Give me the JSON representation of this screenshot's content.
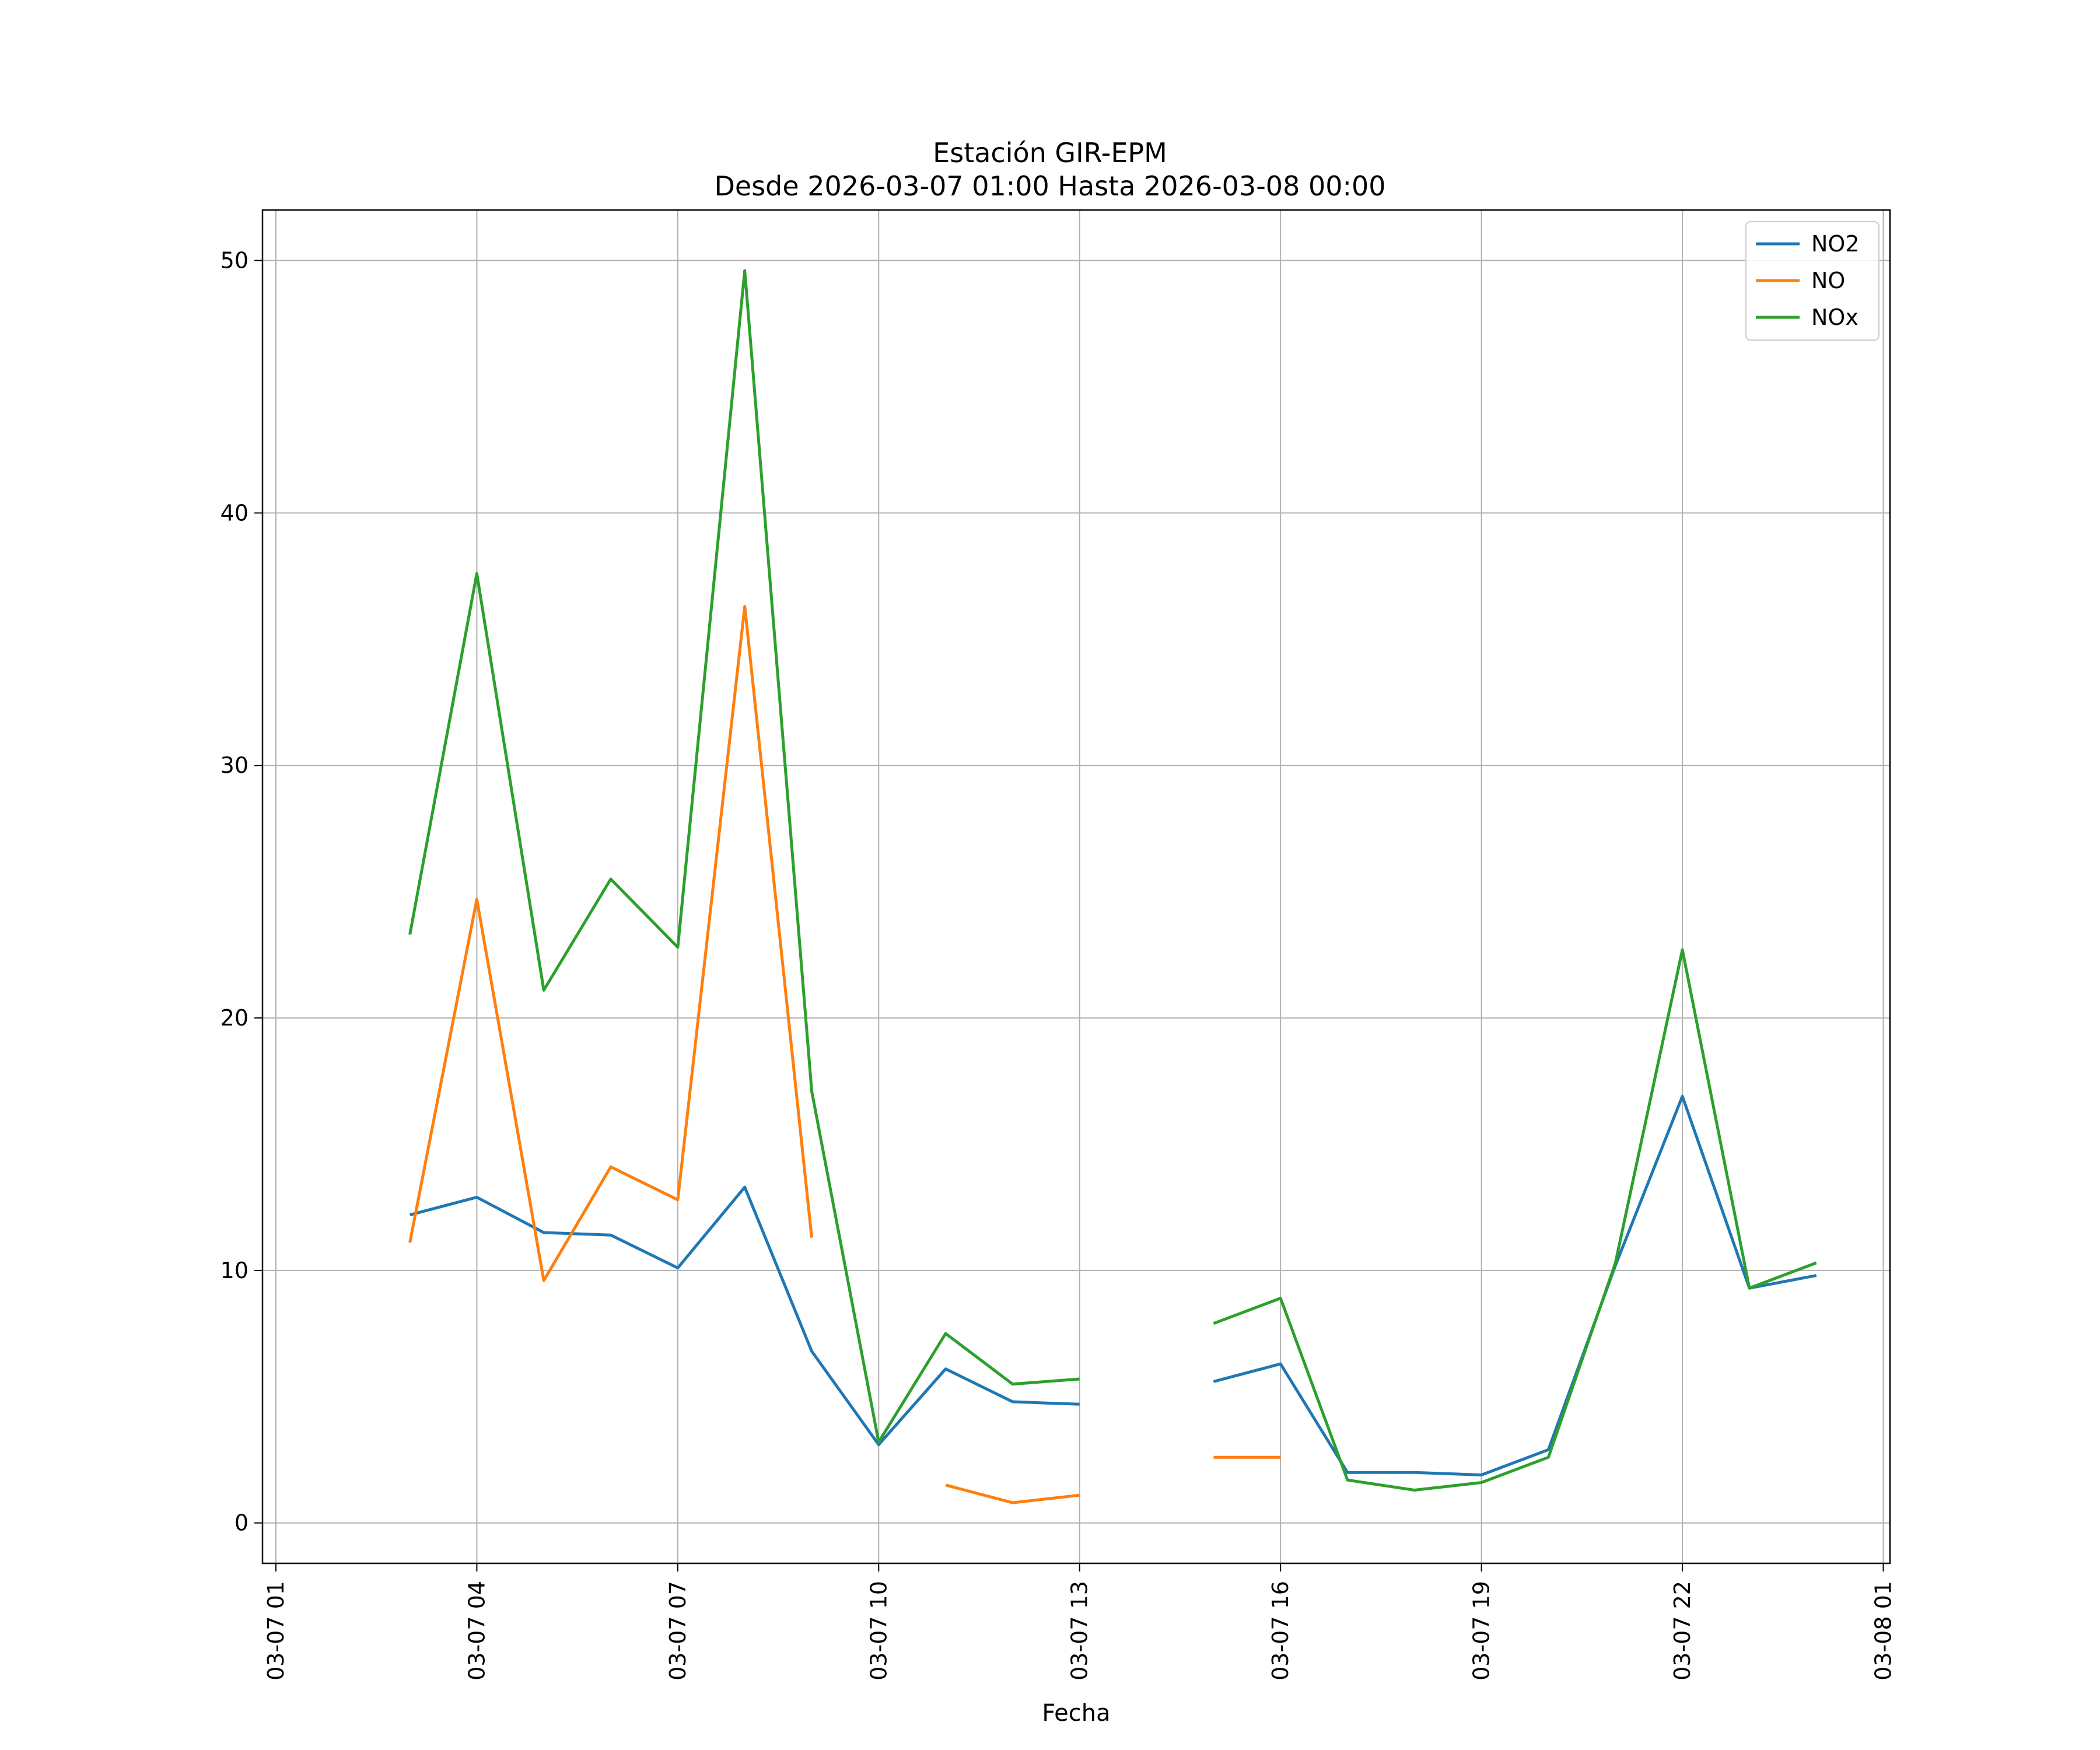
{
  "chart_data": {
    "type": "line",
    "title": "Estación GIR-EPM",
    "subtitle": "Desde 2026-03-07 01:00 Hasta 2026-03-08 00:00",
    "xlabel": "Fecha",
    "ylabel": "",
    "x_hours": [
      3,
      4,
      5,
      6,
      7,
      8,
      9,
      10,
      11,
      12,
      13,
      14,
      15,
      16,
      17,
      18,
      19,
      20,
      21,
      22,
      23,
      24
    ],
    "xlim": [
      0.8,
      25.1
    ],
    "ylim": [
      -1.6,
      52.0
    ],
    "x_tick_labels": [
      "03-07 01",
      "03-07 04",
      "03-07 07",
      "03-07 10",
      "03-07 13",
      "03-07 16",
      "03-07 19",
      "03-07 22",
      "03-08 01"
    ],
    "y_ticks": [
      0,
      10,
      20,
      30,
      40,
      50
    ],
    "grid": true,
    "legend_position": "top-right",
    "series": [
      {
        "name": "NO2",
        "color": "#1f77b4",
        "values": [
          12.2,
          12.9,
          11.5,
          11.4,
          10.1,
          13.3,
          6.8,
          3.1,
          6.1,
          4.8,
          4.7,
          null,
          5.6,
          6.3,
          2.0,
          2.0,
          1.9,
          2.9,
          10.2,
          16.9,
          9.3,
          9.8
        ]
      },
      {
        "name": "NO",
        "color": "#ff7f0e",
        "values": [
          11.1,
          24.7,
          9.6,
          14.1,
          12.8,
          36.3,
          11.3,
          null,
          1.5,
          0.8,
          1.1,
          null,
          2.6,
          2.6,
          null,
          null,
          null,
          null,
          null,
          null,
          null,
          null
        ]
      },
      {
        "name": "NOx",
        "color": "#2ca02c",
        "values": [
          23.3,
          37.6,
          21.1,
          25.5,
          22.8,
          49.6,
          17.1,
          3.2,
          7.5,
          5.5,
          5.7,
          null,
          7.9,
          8.9,
          1.7,
          1.3,
          1.6,
          2.6,
          10.3,
          22.7,
          9.3,
          10.3
        ]
      }
    ]
  }
}
